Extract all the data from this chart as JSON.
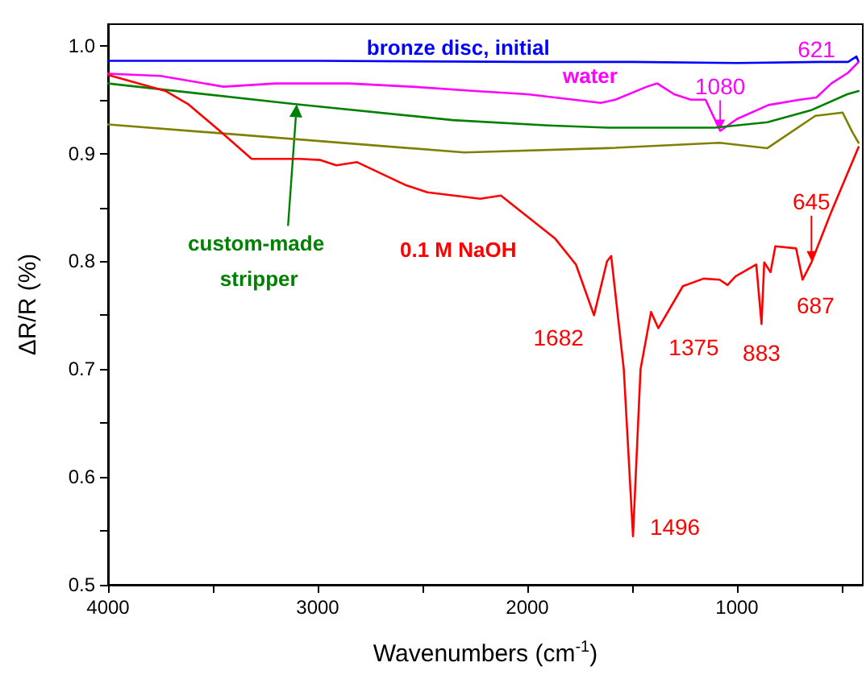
{
  "chart_data": {
    "type": "line",
    "xlabel": "Wavenumbers (cm$^{-1}$)",
    "ylabel": "ΔR/R (%)",
    "xlim": [
      4000,
      400
    ],
    "ylim": [
      0.5,
      1.02
    ],
    "xticks": [
      4000,
      {
        "value": 3500,
        "label": null
      },
      3000,
      {
        "value": 2500,
        "label": null
      },
      2000,
      {
        "value": 1500,
        "label": null
      },
      1000,
      {
        "value": 500,
        "label": null
      }
    ],
    "yticks": [
      0.5,
      {
        "value": 0.55,
        "label": null
      },
      0.6,
      {
        "value": 0.65,
        "label": null
      },
      0.7,
      {
        "value": 0.75,
        "label": null
      },
      0.8,
      {
        "value": 0.85,
        "label": null
      },
      0.9,
      {
        "value": 0.95,
        "label": null
      },
      {
        "value": 1,
        "label": "1.0"
      }
    ],
    "grid": false,
    "legend": false,
    "marker": "none",
    "line_style": "solid",
    "series": [
      {
        "name": "bronze disc, initial",
        "color": "#0000ff",
        "x": [
          4000,
          3000,
          2000,
          1500,
          1000,
          600,
          470,
          430,
          420
        ],
        "values": [
          0.986,
          0.986,
          0.985,
          0.985,
          0.984,
          0.985,
          0.985,
          0.99,
          0.985
        ]
      },
      {
        "name": "water",
        "color": "#ff00ff",
        "x": [
          4000,
          3750,
          3450,
          3200,
          2850,
          2550,
          2250,
          2000,
          1650,
          1580,
          1430,
          1380,
          1300,
          1220,
          1150,
          1080,
          1000,
          850,
          700,
          621,
          550,
          470,
          420
        ],
        "values": [
          0.974,
          0.972,
          0.962,
          0.965,
          0.965,
          0.962,
          0.958,
          0.955,
          0.947,
          0.95,
          0.962,
          0.965,
          0.955,
          0.95,
          0.95,
          0.921,
          0.932,
          0.945,
          0.95,
          0.952,
          0.965,
          0.975,
          0.985
        ]
      },
      {
        "name": "custom-made stripper",
        "color": "#008000",
        "x": [
          4000,
          3117,
          2355,
          1900,
          1616,
          1106,
          855,
          649,
          474,
          420
        ],
        "values": [
          0.965,
          0.946,
          0.931,
          0.926,
          0.924,
          0.924,
          0.929,
          0.94,
          0.955,
          0.958
        ]
      },
      {
        "color": "#808000",
        "x": [
          4000,
          2300,
          1616,
          1083,
          855,
          626,
          496,
          450,
          420
        ],
        "values": [
          0.927,
          0.901,
          0.905,
          0.91,
          0.905,
          0.935,
          0.938,
          0.92,
          0.91
        ]
      },
      {
        "name": "0.1 M NaOH",
        "color": "#ff0000",
        "x": [
          4000,
          3726,
          3619,
          3467,
          3315,
          3086,
          2987,
          2911,
          2812,
          2584,
          2477,
          2225,
          2126,
          1867,
          1768,
          1682,
          1620,
          1600,
          1540,
          1496,
          1460,
          1410,
          1375,
          1258,
          1159,
          1083,
          1045,
          1007,
          908,
          883,
          870,
          840,
          817,
          718,
          687,
          645,
          550,
          420
        ],
        "values": [
          0.973,
          0.958,
          0.946,
          0.921,
          0.895,
          0.895,
          0.894,
          0.889,
          0.892,
          0.871,
          0.864,
          0.858,
          0.861,
          0.821,
          0.797,
          0.75,
          0.8,
          0.805,
          0.7,
          0.545,
          0.7,
          0.753,
          0.738,
          0.777,
          0.784,
          0.783,
          0.778,
          0.786,
          0.797,
          0.742,
          0.799,
          0.79,
          0.814,
          0.812,
          0.783,
          0.799,
          0.846,
          0.906
        ]
      }
    ],
    "annotations": [
      {
        "text": "1080",
        "x": 1080,
        "y": 0.921
      },
      {
        "text": "621",
        "x": 621,
        "y": 0.952
      },
      {
        "text": "1682",
        "x": 1682,
        "y": 0.75
      },
      {
        "text": "1496",
        "x": 1496,
        "y": 0.545
      },
      {
        "text": "1375",
        "x": 1375,
        "y": 0.738
      },
      {
        "text": "883",
        "x": 883,
        "y": 0.742
      },
      {
        "text": "687",
        "x": 687,
        "y": 0.783
      },
      {
        "text": "645",
        "x": 645,
        "y": 0.799
      }
    ]
  }
}
